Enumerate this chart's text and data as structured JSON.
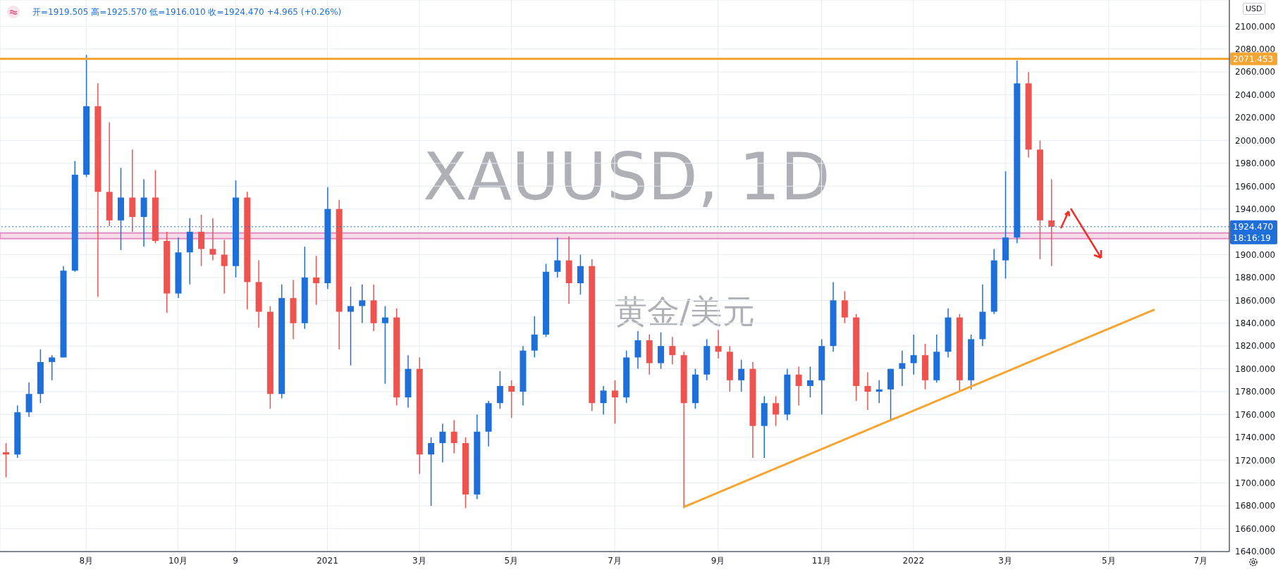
{
  "chart_data": {
    "type": "candlestick",
    "title": "XAUUSD, 1D",
    "subtitle": "黄金/美元",
    "annotations": [
      "开=1919.505 高=1925.570 低=1916.010 收=1924.470 +4.965 (+0.26%)",
      "18:16:19",
      "USD"
    ],
    "categories": [
      null,
      null,
      null,
      null,
      null,
      null,
      null,
      "8月",
      null,
      null,
      null,
      null,
      null,
      null,
      null,
      "10月",
      null,
      null,
      null,
      null,
      "9",
      null,
      null,
      null,
      null,
      null,
      null,
      null,
      "2021",
      null,
      null,
      null,
      null,
      null,
      null,
      null,
      "3月",
      null,
      null,
      null,
      null,
      null,
      null,
      null,
      "5月",
      null,
      null,
      null,
      null,
      null,
      null,
      null,
      null,
      "7月",
      null,
      null,
      null,
      null,
      null,
      null,
      null,
      null,
      "9月",
      null,
      null,
      null,
      null,
      null,
      null,
      null,
      null,
      "11月",
      null,
      null,
      null,
      null,
      null,
      null,
      null,
      "2022",
      null,
      null,
      null,
      null,
      null,
      null,
      null,
      "3月",
      null,
      null,
      null,
      null,
      null,
      null,
      null,
      null,
      "5月",
      null,
      null,
      null,
      null,
      null,
      null,
      null,
      "7月",
      null,
      null
    ],
    "ohlc": [
      [
        1727,
        1735,
        1705,
        1725
      ],
      [
        1725,
        1768,
        1722,
        1762
      ],
      [
        1762,
        1788,
        1758,
        1778
      ],
      [
        1778,
        1817,
        1770,
        1806
      ],
      [
        1806,
        1812,
        1790,
        1810
      ],
      [
        1810,
        1890,
        1810,
        1886
      ],
      [
        1886,
        1982,
        1885,
        1970
      ],
      [
        1970,
        2075,
        1968,
        2030
      ],
      [
        2030,
        2050,
        1863,
        1955
      ],
      [
        1955,
        2016,
        1925,
        1930
      ],
      [
        1930,
        1976,
        1904,
        1950
      ],
      [
        1950,
        1992,
        1920,
        1933
      ],
      [
        1933,
        1966,
        1907,
        1950
      ],
      [
        1950,
        1974,
        1910,
        1912
      ],
      [
        1912,
        1920,
        1849,
        1866
      ],
      [
        1866,
        1915,
        1862,
        1902
      ],
      [
        1902,
        1932,
        1874,
        1920
      ],
      [
        1920,
        1935,
        1890,
        1905
      ],
      [
        1905,
        1932,
        1895,
        1900
      ],
      [
        1900,
        1913,
        1866,
        1890
      ],
      [
        1890,
        1965,
        1880,
        1950
      ],
      [
        1950,
        1955,
        1852,
        1876
      ],
      [
        1876,
        1895,
        1836,
        1850
      ],
      [
        1850,
        1855,
        1765,
        1778
      ],
      [
        1778,
        1874,
        1774,
        1862
      ],
      [
        1862,
        1878,
        1826,
        1840
      ],
      [
        1840,
        1907,
        1835,
        1880
      ],
      [
        1880,
        1899,
        1856,
        1875
      ],
      [
        1875,
        1959,
        1870,
        1940
      ],
      [
        1940,
        1948,
        1817,
        1850
      ],
      [
        1850,
        1872,
        1803,
        1855
      ],
      [
        1855,
        1874,
        1840,
        1860
      ],
      [
        1860,
        1874,
        1833,
        1840
      ],
      [
        1840,
        1855,
        1787,
        1845
      ],
      [
        1845,
        1853,
        1768,
        1775
      ],
      [
        1775,
        1812,
        1766,
        1800
      ],
      [
        1800,
        1810,
        1708,
        1725
      ],
      [
        1725,
        1740,
        1680,
        1735
      ],
      [
        1735,
        1752,
        1718,
        1745
      ],
      [
        1745,
        1755,
        1726,
        1735
      ],
      [
        1735,
        1740,
        1678,
        1690
      ],
      [
        1690,
        1760,
        1686,
        1745
      ],
      [
        1745,
        1772,
        1732,
        1770
      ],
      [
        1770,
        1798,
        1765,
        1785
      ],
      [
        1785,
        1790,
        1757,
        1780
      ],
      [
        1780,
        1820,
        1768,
        1816
      ],
      [
        1816,
        1846,
        1810,
        1830
      ],
      [
        1830,
        1892,
        1828,
        1885
      ],
      [
        1885,
        1915,
        1880,
        1895
      ],
      [
        1895,
        1916,
        1857,
        1875
      ],
      [
        1875,
        1900,
        1865,
        1890
      ],
      [
        1890,
        1896,
        1763,
        1770
      ],
      [
        1770,
        1785,
        1760,
        1781
      ],
      [
        1781,
        1790,
        1752,
        1775
      ],
      [
        1775,
        1816,
        1770,
        1810
      ],
      [
        1810,
        1833,
        1800,
        1825
      ],
      [
        1825,
        1830,
        1795,
        1805
      ],
      [
        1805,
        1832,
        1800,
        1820
      ],
      [
        1820,
        1828,
        1804,
        1812
      ],
      [
        1812,
        1815,
        1678,
        1770
      ],
      [
        1770,
        1800,
        1765,
        1795
      ],
      [
        1795,
        1826,
        1790,
        1820
      ],
      [
        1820,
        1834,
        1809,
        1815
      ],
      [
        1815,
        1820,
        1780,
        1790
      ],
      [
        1790,
        1808,
        1780,
        1800
      ],
      [
        1800,
        1806,
        1722,
        1750
      ],
      [
        1750,
        1776,
        1722,
        1770
      ],
      [
        1770,
        1776,
        1750,
        1760
      ],
      [
        1760,
        1800,
        1755,
        1795
      ],
      [
        1795,
        1802,
        1768,
        1785
      ],
      [
        1785,
        1802,
        1775,
        1790
      ],
      [
        1790,
        1826,
        1760,
        1820
      ],
      [
        1820,
        1876,
        1815,
        1860
      ],
      [
        1860,
        1868,
        1840,
        1845
      ],
      [
        1845,
        1848,
        1772,
        1785
      ],
      [
        1785,
        1797,
        1764,
        1780
      ],
      [
        1780,
        1790,
        1770,
        1782
      ],
      [
        1782,
        1800,
        1755,
        1800
      ],
      [
        1800,
        1816,
        1785,
        1805
      ],
      [
        1805,
        1830,
        1795,
        1812
      ],
      [
        1812,
        1822,
        1782,
        1790
      ],
      [
        1790,
        1830,
        1788,
        1815
      ],
      [
        1815,
        1853,
        1810,
        1845
      ],
      [
        1845,
        1848,
        1780,
        1790
      ],
      [
        1790,
        1830,
        1782,
        1826
      ],
      [
        1826,
        1874,
        1820,
        1850
      ],
      [
        1850,
        1905,
        1848,
        1895
      ],
      [
        1895,
        1973,
        1879,
        1915
      ],
      [
        1915,
        2070,
        1910,
        2050
      ],
      [
        2050,
        2060,
        1985,
        1992
      ],
      [
        1992,
        2000,
        1896,
        1930
      ],
      [
        1930,
        1966,
        1890,
        1924.47
      ],
      null,
      null,
      null,
      null,
      null,
      null,
      null,
      null,
      null,
      null,
      null,
      null,
      null,
      null,
      null
    ],
    "series": [
      {
        "type": "line",
        "color": "#f7a531",
        "values": [
          null,
          null,
          null,
          null,
          null,
          null,
          null,
          null,
          null,
          null,
          null,
          null,
          null,
          null,
          null,
          null,
          null,
          null,
          null,
          null,
          null,
          null,
          null,
          null,
          null,
          null,
          null,
          null,
          null,
          null,
          null,
          null,
          null,
          null,
          null,
          null,
          null,
          null,
          null,
          null,
          null,
          null,
          null,
          null,
          null,
          null,
          null,
          null,
          null,
          null,
          null,
          null,
          null,
          null,
          null,
          null,
          null,
          null,
          null,
          1679,
          null,
          null,
          null,
          null,
          null,
          null,
          null,
          null,
          null,
          null,
          null,
          null,
          null,
          null,
          null,
          null,
          null,
          null,
          null,
          null,
          null,
          null,
          null,
          null,
          null,
          null,
          null,
          null,
          null,
          null,
          null,
          null,
          null,
          null,
          null,
          null,
          null,
          null,
          null,
          null,
          1852,
          null,
          null,
          null,
          null,
          null,
          null
        ]
      }
    ],
    "ylim": [
      1640,
      2123
    ],
    "yticks": [
      {
        "value": 1640,
        "label": "1640.000"
      },
      {
        "value": 1660,
        "label": "1660.000"
      },
      {
        "value": 1680,
        "label": "1680.000"
      },
      {
        "value": 1700,
        "label": "1700.000"
      },
      {
        "value": 1720,
        "label": "1720.000"
      },
      {
        "value": 1740,
        "label": "1740.000"
      },
      {
        "value": 1760,
        "label": "1760.000"
      },
      {
        "value": 1780,
        "label": "1780.000"
      },
      {
        "value": 1800,
        "label": "1800.000"
      },
      {
        "value": 1820,
        "label": "1820.000"
      },
      {
        "value": 1840,
        "label": "1840.000"
      },
      {
        "value": 1860,
        "label": "1860.000"
      },
      {
        "value": 1880,
        "label": "1880.000"
      },
      {
        "value": 1900,
        "label": "1900.000"
      },
      {
        "value": 1920,
        "label": null
      },
      {
        "value": 1940,
        "label": "1940.000"
      },
      {
        "value": 1960,
        "label": "1960.000"
      },
      {
        "value": 1980,
        "label": "1980.000"
      },
      {
        "value": 2000,
        "label": "2000.000"
      },
      {
        "value": 2020,
        "label": "2020.000"
      },
      {
        "value": 2040,
        "label": "2040.000"
      },
      {
        "value": 2060,
        "label": "2060.000"
      },
      {
        "value": 2080,
        "label": "2080.000"
      },
      {
        "value": 2100,
        "label": "2100.000"
      }
    ],
    "grid": true,
    "ref_lines": [
      {
        "axis": "y",
        "value": 2071.453,
        "label": "2071.453",
        "color": "#f7a531",
        "line_style": "solid"
      },
      {
        "axis": "y",
        "value": 1924.47,
        "label": "1924.470",
        "color": "#1e6fd9",
        "line_style": "dotted"
      }
    ],
    "bands": [
      {
        "axis": "y",
        "from": 1914,
        "to": 1919,
        "color": "#e58fc0"
      }
    ]
  }
}
